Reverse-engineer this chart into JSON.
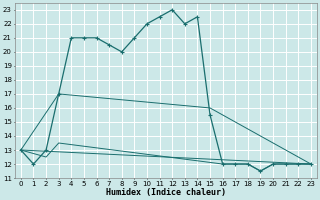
{
  "xlabel": "Humidex (Indice chaleur)",
  "bg_color": "#cce8e8",
  "grid_color": "#ffffff",
  "line_color": "#1a6e6e",
  "xlim": [
    -0.5,
    23.5
  ],
  "ylim": [
    11,
    23.5
  ],
  "xticks": [
    0,
    1,
    2,
    3,
    4,
    5,
    6,
    7,
    8,
    9,
    10,
    11,
    12,
    13,
    14,
    15,
    16,
    17,
    18,
    19,
    20,
    21,
    22,
    23
  ],
  "yticks": [
    11,
    12,
    13,
    14,
    15,
    16,
    17,
    18,
    19,
    20,
    21,
    22,
    23
  ],
  "series1_x": [
    0,
    1,
    2,
    3,
    4,
    5,
    6,
    7,
    8,
    9,
    10,
    11,
    12,
    13,
    14,
    15,
    16,
    17,
    18,
    19,
    20,
    21,
    22,
    23
  ],
  "series1_y": [
    13,
    12,
    13,
    17,
    21,
    21,
    21,
    20.5,
    20,
    21,
    22,
    22.5,
    23,
    22,
    22.5,
    15.5,
    12,
    12,
    12,
    11.5,
    12,
    12,
    12,
    12
  ],
  "series2_x": [
    0,
    23
  ],
  "series2_y": [
    13,
    12
  ],
  "series3_x": [
    0,
    3,
    15,
    23
  ],
  "series3_y": [
    13,
    17,
    16,
    12
  ],
  "series4_x": [
    0,
    2,
    3,
    16,
    17,
    18,
    19,
    20,
    21,
    22,
    23
  ],
  "series4_y": [
    13,
    12.5,
    13.5,
    12,
    12,
    12,
    11.5,
    12,
    12,
    12,
    12
  ]
}
